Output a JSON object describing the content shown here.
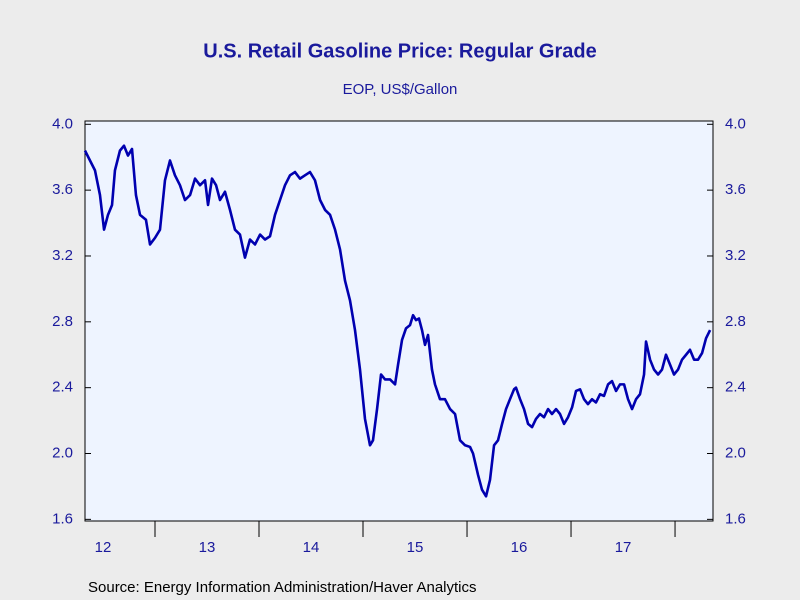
{
  "chart_data": {
    "type": "line",
    "title": "U.S. Retail Gasoline Price: Regular Grade",
    "subtitle": "EOP, US$/Gallon",
    "source": "Source:  Energy Information Administration/Haver Analytics",
    "xlim": [
      2012.327,
      2018.365
    ],
    "xticks": [
      2013,
      2014,
      2015,
      2016,
      2017,
      2018
    ],
    "x_labels": [
      {
        "value": 2012.5,
        "label": "12"
      },
      {
        "value": 2013.5,
        "label": "13"
      },
      {
        "value": 2014.5,
        "label": "14"
      },
      {
        "value": 2015.5,
        "label": "15"
      },
      {
        "value": 2016.5,
        "label": "16"
      },
      {
        "value": 2017.5,
        "label": "17"
      }
    ],
    "ylim": [
      1.59,
      4.02
    ],
    "yticks": [
      {
        "value": 1.6,
        "label": "1.6"
      },
      {
        "value": 2.0,
        "label": "2.0"
      },
      2.4,
      2.8,
      3.2,
      3.6,
      {
        "value": 4.0,
        "label": "4.0"
      }
    ],
    "y2lim": [
      1.59,
      4.02
    ],
    "y2ticks": [
      {
        "value": 1.6,
        "label": "1.6"
      },
      {
        "value": 2.0,
        "label": "2.0"
      },
      2.4,
      2.8,
      3.2,
      3.6,
      {
        "value": 4.0,
        "label": "4.0"
      }
    ],
    "series": [
      {
        "color": "#0000b0",
        "x": [
          2012.327,
          2012.423,
          2012.471,
          2012.51,
          2012.548,
          2012.587,
          2012.615,
          2012.663,
          2012.702,
          2012.74,
          2012.779,
          2012.817,
          2012.856,
          2012.913,
          2012.952,
          2013.0,
          2013.048,
          2013.096,
          2013.144,
          2013.192,
          2013.24,
          2013.288,
          2013.337,
          2013.385,
          2013.433,
          2013.481,
          2013.51,
          2013.548,
          2013.587,
          2013.625,
          2013.673,
          2013.721,
          2013.769,
          2013.817,
          2013.865,
          2013.913,
          2013.962,
          2014.01,
          2014.058,
          2014.106,
          2014.154,
          2014.202,
          2014.25,
          2014.298,
          2014.346,
          2014.394,
          2014.442,
          2014.49,
          2014.538,
          2014.587,
          2014.635,
          2014.683,
          2014.731,
          2014.779,
          2014.827,
          2014.875,
          2014.923,
          2014.971,
          2015.019,
          2015.067,
          2015.096,
          2015.135,
          2015.173,
          2015.212,
          2015.26,
          2015.308,
          2015.337,
          2015.375,
          2015.413,
          2015.452,
          2015.481,
          2015.51,
          2015.538,
          2015.567,
          2015.596,
          2015.625,
          2015.663,
          2015.692,
          2015.74,
          2015.788,
          2015.837,
          2015.885,
          2015.933,
          2015.981,
          2016.029,
          2016.058,
          2016.106,
          2016.144,
          2016.183,
          2016.221,
          2016.26,
          2016.298,
          2016.337,
          2016.375,
          2016.413,
          2016.452,
          2016.471,
          2016.51,
          2016.548,
          2016.587,
          2016.625,
          2016.663,
          2016.702,
          2016.74,
          2016.779,
          2016.817,
          2016.856,
          2016.894,
          2016.933,
          2016.971,
          2017.01,
          2017.048,
          2017.087,
          2017.125,
          2017.163,
          2017.202,
          2017.24,
          2017.279,
          2017.317,
          2017.356,
          2017.394,
          2017.433,
          2017.471,
          2017.51,
          2017.548,
          2017.587,
          2017.625,
          2017.663,
          2017.702,
          2017.721,
          2017.76,
          2017.798,
          2017.837,
          2017.875,
          2017.913,
          2017.952,
          2017.99,
          2018.029,
          2018.067,
          2018.106,
          2018.144,
          2018.183,
          2018.221,
          2018.26,
          2018.298,
          2018.337
        ],
        "values": [
          3.84,
          3.72,
          3.57,
          3.36,
          3.45,
          3.51,
          3.72,
          3.84,
          3.87,
          3.81,
          3.85,
          3.57,
          3.45,
          3.42,
          3.27,
          3.31,
          3.36,
          3.66,
          3.78,
          3.69,
          3.63,
          3.54,
          3.57,
          3.67,
          3.63,
          3.66,
          3.51,
          3.67,
          3.63,
          3.54,
          3.59,
          3.48,
          3.36,
          3.33,
          3.19,
          3.3,
          3.27,
          3.33,
          3.3,
          3.32,
          3.45,
          3.54,
          3.63,
          3.69,
          3.71,
          3.67,
          3.69,
          3.71,
          3.66,
          3.54,
          3.48,
          3.45,
          3.36,
          3.24,
          3.05,
          2.93,
          2.75,
          2.51,
          2.21,
          2.05,
          2.08,
          2.27,
          2.48,
          2.45,
          2.45,
          2.42,
          2.54,
          2.69,
          2.76,
          2.78,
          2.84,
          2.81,
          2.82,
          2.75,
          2.66,
          2.72,
          2.51,
          2.42,
          2.33,
          2.33,
          2.27,
          2.24,
          2.08,
          2.05,
          2.04,
          2.0,
          1.87,
          1.78,
          1.74,
          1.84,
          2.05,
          2.08,
          2.18,
          2.27,
          2.33,
          2.39,
          2.4,
          2.33,
          2.27,
          2.18,
          2.16,
          2.21,
          2.24,
          2.22,
          2.27,
          2.24,
          2.27,
          2.24,
          2.18,
          2.22,
          2.28,
          2.38,
          2.39,
          2.33,
          2.3,
          2.33,
          2.31,
          2.36,
          2.35,
          2.42,
          2.44,
          2.38,
          2.42,
          2.42,
          2.33,
          2.27,
          2.33,
          2.36,
          2.48,
          2.68,
          2.57,
          2.51,
          2.48,
          2.51,
          2.6,
          2.54,
          2.48,
          2.51,
          2.57,
          2.6,
          2.63,
          2.57,
          2.57,
          2.61,
          2.7,
          2.75
        ]
      }
    ]
  }
}
